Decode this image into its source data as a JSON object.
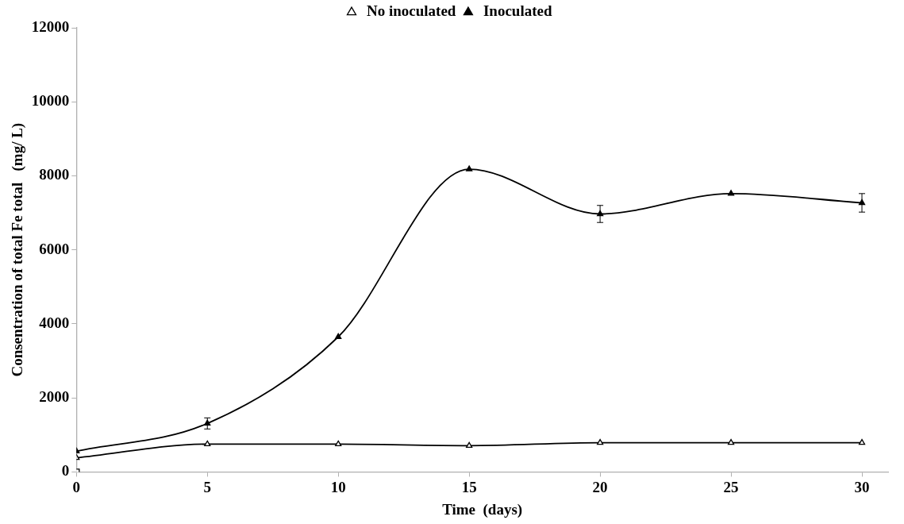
{
  "chart_data": {
    "type": "line",
    "xlabel": "Time  (days)",
    "ylabel": "Consentration of total Fe total   (mg/ L)",
    "x": [
      0,
      5,
      10,
      15,
      20,
      25,
      30
    ],
    "xlim": [
      0,
      31
    ],
    "xticks": [
      0,
      5,
      10,
      15,
      20,
      25,
      30
    ],
    "ylim": [
      0,
      12000
    ],
    "yticks": [
      0,
      2000,
      4000,
      6000,
      8000,
      10000,
      12000
    ],
    "grid": false,
    "legend": "top",
    "line_style": "solid",
    "series": [
      {
        "type": "scatter",
        "color": "#000000",
        "marker": "square",
        "x": [
          0
        ],
        "values": [
          0
        ]
      },
      {
        "name": "No inoculated",
        "color": "#000000",
        "marker": "triangle",
        "values": [
          380,
          750,
          750,
          710,
          790,
          790,
          790
        ]
      },
      {
        "name": "Inoculated",
        "color": "#000000",
        "marker": "triangle",
        "values": [
          560,
          1310,
          3650,
          8180,
          6970,
          7520,
          7270
        ],
        "errors": [
          null,
          150,
          null,
          null,
          230,
          null,
          250
        ]
      }
    ]
  }
}
